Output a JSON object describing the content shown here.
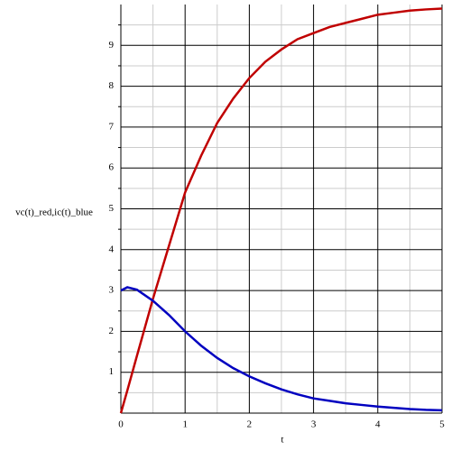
{
  "chart_data": {
    "type": "line",
    "xlabel": "t",
    "ylabel": "vc(t)_red,ic(t)_blue",
    "x": [
      0,
      0.1,
      0.25,
      0.5,
      0.75,
      1,
      1.25,
      1.5,
      1.75,
      2,
      2.25,
      2.5,
      2.75,
      3,
      3.25,
      3.5,
      3.75,
      4,
      4.25,
      4.5,
      4.75,
      5
    ],
    "series": [
      {
        "color": "#c00000",
        "values": [
          0,
          0.55,
          1.4,
          2.8,
          4.1,
          5.4,
          6.3,
          7.1,
          7.7,
          8.2,
          8.6,
          8.9,
          9.15,
          9.3,
          9.45,
          9.55,
          9.65,
          9.75,
          9.8,
          9.85,
          9.88,
          9.9
        ]
      },
      {
        "color": "#0000c0",
        "values": [
          3.0,
          3.08,
          3.02,
          2.75,
          2.4,
          2.0,
          1.65,
          1.35,
          1.1,
          0.9,
          0.73,
          0.58,
          0.46,
          0.36,
          0.3,
          0.24,
          0.2,
          0.16,
          0.13,
          0.1,
          0.08,
          0.07
        ]
      }
    ],
    "xlim": [
      0,
      5
    ],
    "ylim": [
      0,
      10
    ],
    "xticks": [
      0,
      1,
      2,
      3,
      4,
      5
    ],
    "yticks": [
      1,
      2,
      3,
      4,
      5,
      6,
      7,
      8,
      9
    ],
    "xminorticks": [
      0.5,
      1.5,
      2.5,
      3.5,
      4.5
    ],
    "yminorticks": [
      0.5,
      1.5,
      2.5,
      3.5,
      4.5,
      5.5,
      6.5,
      7.5,
      8.5,
      9.5
    ],
    "grid": true
  }
}
